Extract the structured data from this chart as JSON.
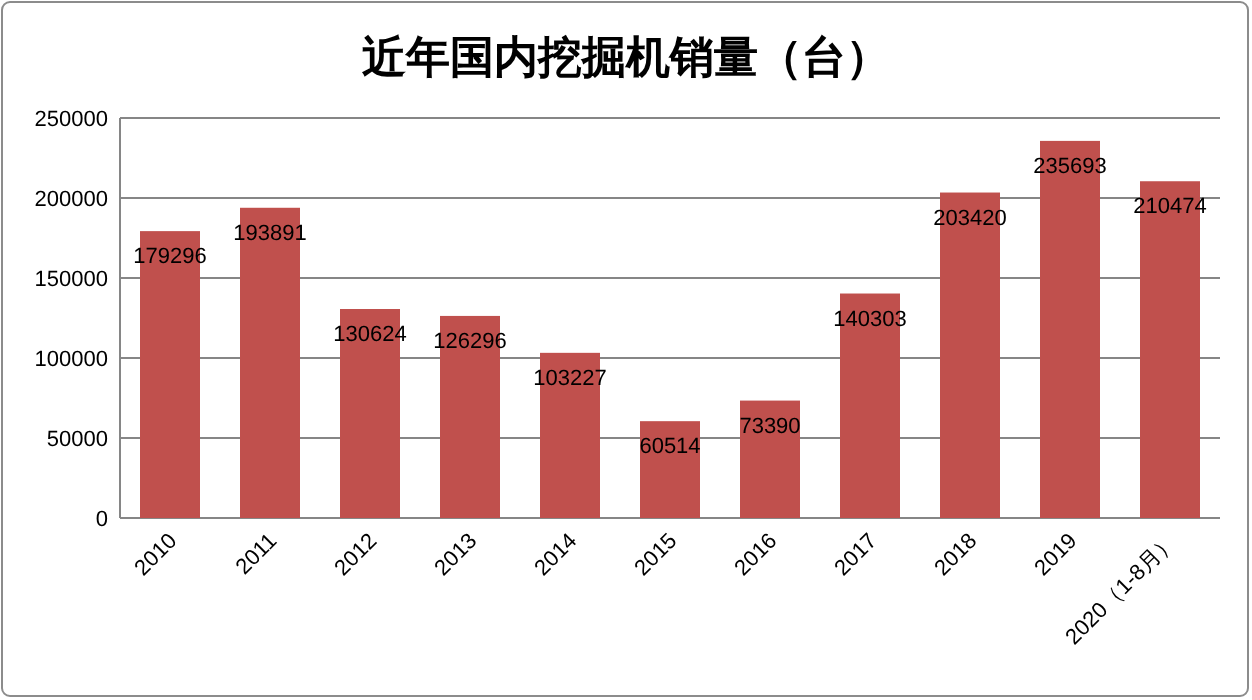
{
  "chart_data": {
    "type": "bar",
    "title": "近年国内挖掘机销量（台）",
    "categories": [
      "2010",
      "2011",
      "2012",
      "2013",
      "2014",
      "2015",
      "2016",
      "2017",
      "2018",
      "2019",
      "2020（1-8月）"
    ],
    "values": [
      179296,
      193891,
      130624,
      126296,
      103227,
      60514,
      73390,
      140303,
      203420,
      235693,
      210474
    ],
    "color": "#c0504d",
    "ylim": [
      0,
      250000
    ],
    "yticks": [
      0,
      50000,
      100000,
      150000,
      200000,
      250000
    ],
    "grid": "y",
    "data_labels": true
  }
}
